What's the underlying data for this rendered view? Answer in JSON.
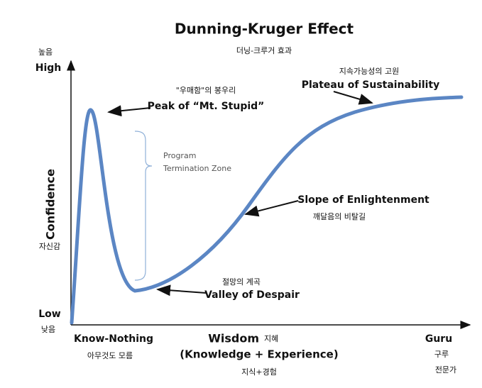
{
  "header": {
    "title": "Dunning-Kruger Effect",
    "subtitle": "더닝-크루거 효과"
  },
  "y_axis": {
    "high_ko": "높음",
    "high": "High",
    "label": "Confidence",
    "label_ko": "자신감",
    "low": "Low",
    "low_ko": "낮음"
  },
  "x_axis": {
    "start": "Know-Nothing",
    "start_ko": "아무것도 모름",
    "label": "Wisdom",
    "label_ko": "지혜",
    "label_detail": "(Knowledge + Experience)",
    "label_detail_ko": "지식+경험",
    "end": "Guru",
    "end_ko": "구루",
    "end_ko2": "전문가"
  },
  "annotations": {
    "peak": {
      "ko": "\"우매함\"의 봉우리",
      "en": "Peak of “Mt. Stupid”"
    },
    "zone": {
      "line1": "Program",
      "line2": "Termination Zone"
    },
    "valley": {
      "ko": "절망의 계곡",
      "en": "Valley of Despair"
    },
    "slope": {
      "en": "Slope of Enlightenment",
      "ko": "깨달음의 비탈길"
    },
    "plateau": {
      "ko": "지속가능성의 고원",
      "en": "Plateau of Sustainability"
    }
  }
}
